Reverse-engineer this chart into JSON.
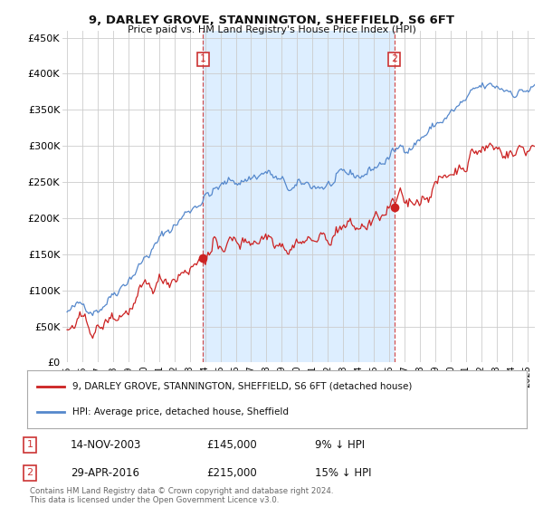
{
  "title": "9, DARLEY GROVE, STANNINGTON, SHEFFIELD, S6 6FT",
  "subtitle": "Price paid vs. HM Land Registry's House Price Index (HPI)",
  "ylabel_ticks": [
    "£0",
    "£50K",
    "£100K",
    "£150K",
    "£200K",
    "£250K",
    "£300K",
    "£350K",
    "£400K",
    "£450K"
  ],
  "ylim": [
    0,
    460000
  ],
  "xlim_start": 1994.7,
  "xlim_end": 2025.5,
  "transaction1_x": 2003.87,
  "transaction1_y": 145000,
  "transaction1_label": "14-NOV-2003",
  "transaction1_price": "£145,000",
  "transaction1_note": "9% ↓ HPI",
  "transaction2_x": 2016.33,
  "transaction2_y": 215000,
  "transaction2_label": "29-APR-2016",
  "transaction2_price": "£215,000",
  "transaction2_note": "15% ↓ HPI",
  "hpi_color": "#5588cc",
  "price_color": "#cc2222",
  "vline_color": "#cc3333",
  "shade_color": "#ddeeff",
  "legend_label1": "9, DARLEY GROVE, STANNINGTON, SHEFFIELD, S6 6FT (detached house)",
  "legend_label2": "HPI: Average price, detached house, Sheffield",
  "footnote": "Contains HM Land Registry data © Crown copyright and database right 2024.\nThis data is licensed under the Open Government Licence v3.0.",
  "background_color": "#ffffff",
  "grid_color": "#cccccc"
}
